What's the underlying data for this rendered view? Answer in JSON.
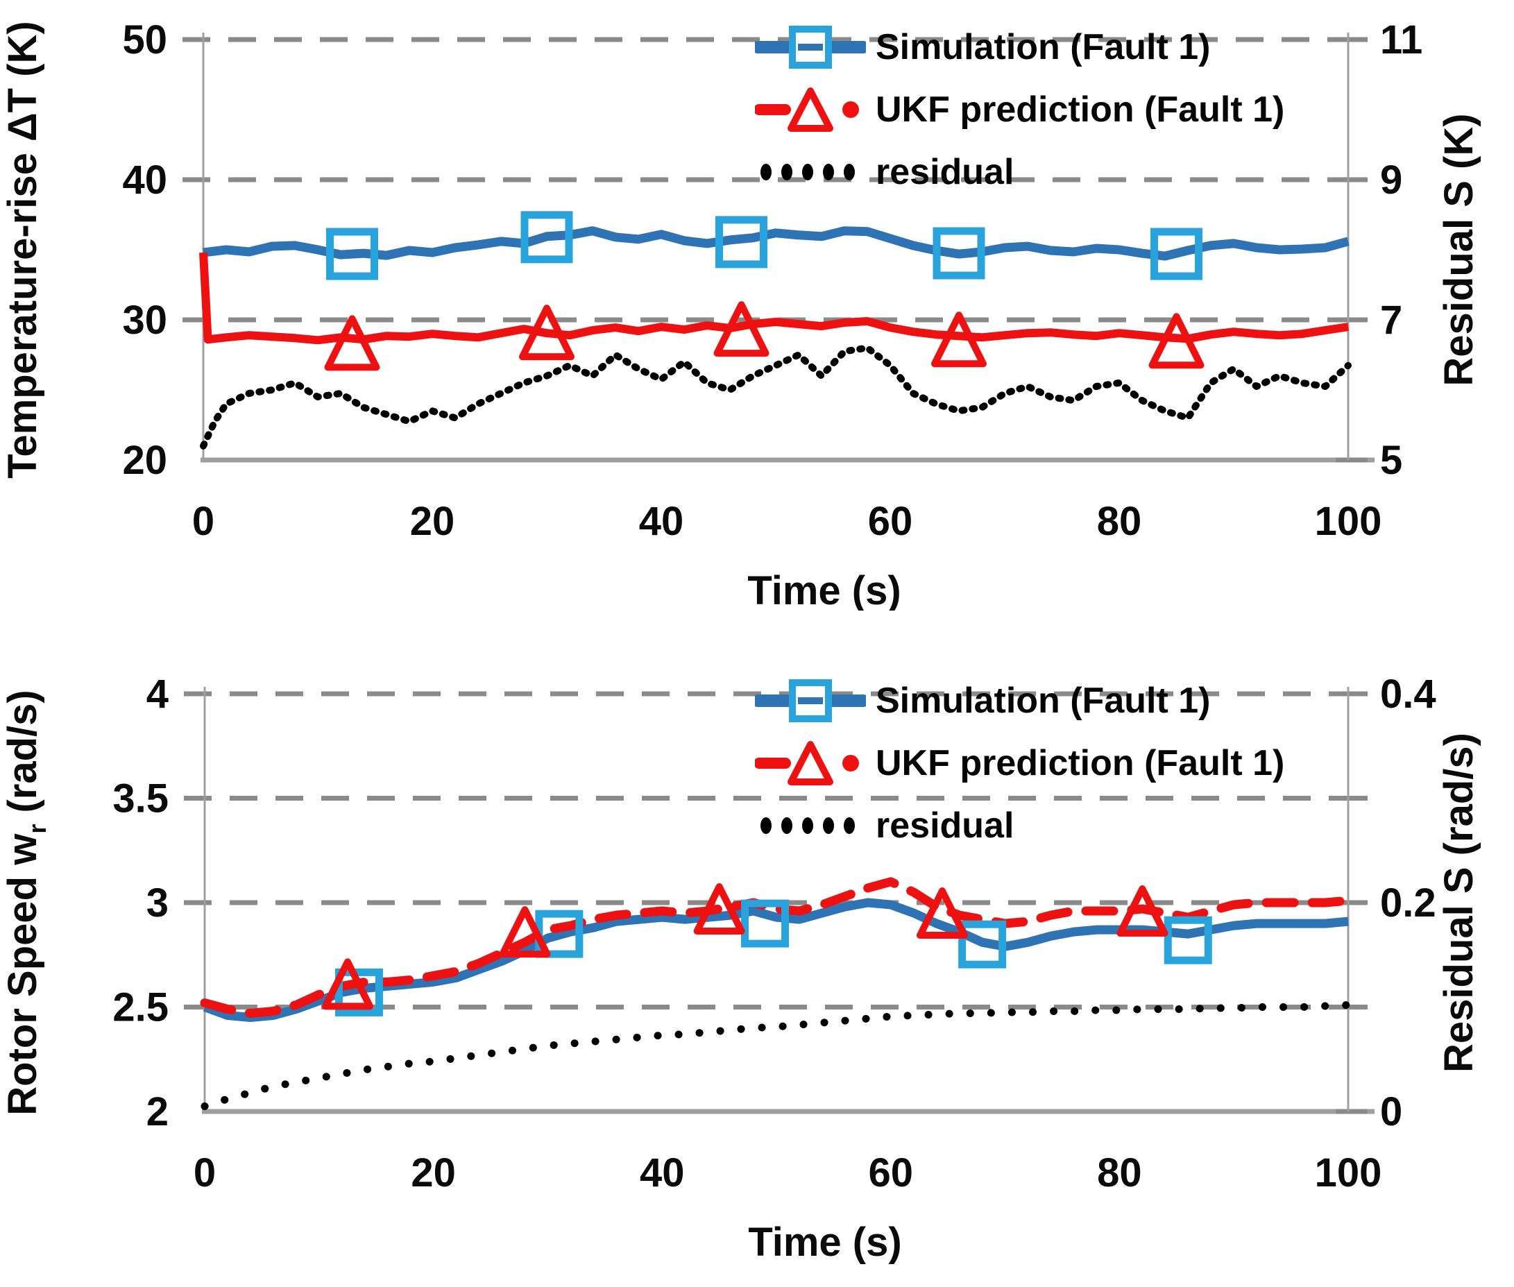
{
  "figure_background": "#ffffff",
  "colors": {
    "simulation_line": "#2E74B5",
    "simulation_marker": "#29A3DC",
    "ukf_line": "#EE1111",
    "residual_line": "#000000",
    "gridline": "#8a8a8a",
    "axis": "#9f9f9f",
    "text": "#0a0a0a"
  },
  "chart_data": [
    {
      "id": "chart-temperature",
      "type": "line",
      "title": "",
      "x_axis": {
        "title": "Time (s)",
        "min": 0,
        "max": 100,
        "ticks": [
          0,
          20,
          40,
          60,
          80,
          100
        ]
      },
      "left_axis": {
        "title_parts": [
          "Temperature-rise ΔT (K)",
          "",
          ""
        ],
        "min": 20,
        "max": 50,
        "ticks": [
          {
            "v": 50,
            "label": "50"
          },
          {
            "v": 40,
            "label": "40"
          },
          {
            "v": 30,
            "label": "30"
          },
          {
            "v": 20,
            "label": "20"
          }
        ]
      },
      "right_axis": {
        "title_parts": [
          "Residual S (K)",
          "",
          ""
        ],
        "min": 5,
        "max": 11,
        "ticks": [
          {
            "v": 11,
            "label": "11"
          },
          {
            "v": 9,
            "label": "9"
          },
          {
            "v": 7,
            "label": "7"
          },
          {
            "v": 5,
            "label": "5"
          }
        ]
      },
      "grid": "dashed-horizontal",
      "legend_position": "top-inside",
      "legend": [
        {
          "type": "sim",
          "label": "Simulation (Fault 1)"
        },
        {
          "type": "ukf",
          "label": "UKF prediction (Fault 1)"
        },
        {
          "type": "res",
          "label": "residual"
        }
      ],
      "marker_size": 64,
      "series": [
        {
          "key": "simulation",
          "name": "Simulation (Fault 1)",
          "axis": "left",
          "style": "blue-solid",
          "x": [
            0,
            2,
            4,
            6,
            8,
            10,
            12,
            14,
            16,
            18,
            20,
            22,
            24,
            26,
            28,
            30,
            32,
            34,
            36,
            38,
            40,
            42,
            44,
            46,
            48,
            50,
            52,
            54,
            56,
            58,
            60,
            62,
            64,
            66,
            68,
            70,
            72,
            74,
            76,
            78,
            80,
            82,
            84,
            86,
            88,
            90,
            92,
            94,
            96,
            98,
            100
          ],
          "y": [
            34.8,
            35.0,
            34.85,
            35.25,
            35.3,
            35.0,
            34.65,
            34.75,
            34.6,
            34.95,
            34.8,
            35.15,
            35.35,
            35.6,
            35.45,
            35.95,
            36.05,
            36.35,
            35.9,
            35.75,
            36.1,
            35.65,
            35.45,
            35.7,
            35.85,
            36.2,
            36.05,
            35.95,
            36.35,
            36.3,
            35.8,
            35.3,
            34.95,
            34.7,
            34.85,
            35.15,
            35.25,
            34.95,
            34.85,
            35.1,
            35.0,
            34.75,
            34.55,
            34.95,
            35.3,
            35.45,
            35.15,
            35.0,
            35.05,
            35.15,
            35.6
          ]
        },
        {
          "key": "ukf",
          "name": "UKF prediction (Fault 1)",
          "axis": "left",
          "style": "red-solid",
          "x": [
            0,
            0.4,
            2,
            4,
            6,
            8,
            10,
            12,
            14,
            16,
            18,
            20,
            22,
            24,
            26,
            28,
            30,
            32,
            34,
            36,
            38,
            40,
            42,
            44,
            46,
            48,
            50,
            52,
            54,
            56,
            58,
            60,
            62,
            64,
            66,
            68,
            70,
            72,
            74,
            76,
            78,
            80,
            82,
            84,
            86,
            88,
            90,
            92,
            94,
            96,
            98,
            100
          ],
          "y": [
            34.8,
            28.6,
            28.75,
            28.9,
            28.8,
            28.7,
            28.55,
            28.75,
            28.6,
            28.85,
            28.8,
            29.0,
            28.85,
            28.75,
            29.05,
            29.35,
            29.05,
            28.9,
            29.25,
            29.45,
            29.2,
            29.5,
            29.3,
            29.6,
            29.4,
            29.7,
            29.85,
            29.7,
            29.55,
            29.8,
            29.9,
            29.45,
            29.15,
            28.95,
            28.85,
            28.75,
            28.9,
            29.05,
            29.1,
            28.95,
            28.85,
            29.05,
            28.9,
            28.75,
            28.65,
            28.95,
            29.15,
            29.0,
            28.9,
            29.0,
            29.25,
            29.5
          ]
        },
        {
          "key": "residual",
          "name": "residual",
          "axis": "right",
          "style": "black-dense",
          "x": [
            0,
            1,
            2,
            4,
            6,
            8,
            10,
            12,
            14,
            16,
            18,
            20,
            22,
            24,
            26,
            28,
            30,
            32,
            34,
            36,
            38,
            40,
            42,
            44,
            46,
            48,
            50,
            52,
            54,
            56,
            58,
            60,
            62,
            64,
            66,
            68,
            70,
            72,
            74,
            76,
            78,
            80,
            82,
            84,
            86,
            88,
            90,
            92,
            94,
            96,
            98,
            100
          ],
          "y": [
            5.2,
            5.55,
            5.8,
            5.95,
            6.0,
            6.1,
            5.9,
            5.95,
            5.75,
            5.65,
            5.55,
            5.7,
            5.6,
            5.8,
            5.95,
            6.1,
            6.2,
            6.35,
            6.2,
            6.5,
            6.3,
            6.15,
            6.4,
            6.1,
            6.0,
            6.2,
            6.35,
            6.5,
            6.2,
            6.55,
            6.6,
            6.35,
            5.95,
            5.8,
            5.7,
            5.75,
            5.95,
            6.05,
            5.9,
            5.85,
            6.05,
            6.1,
            5.85,
            5.7,
            5.6,
            6.1,
            6.3,
            6.05,
            6.2,
            6.1,
            6.05,
            6.35
          ]
        }
      ],
      "markers": {
        "squares": [
          [
            13,
            34.7
          ],
          [
            30,
            35.9
          ],
          [
            47,
            35.55
          ],
          [
            66,
            34.75
          ],
          [
            85,
            34.7
          ]
        ],
        "triangles": [
          [
            13,
            28.35
          ],
          [
            30,
            29.1
          ],
          [
            47,
            29.35
          ],
          [
            66,
            28.6
          ],
          [
            85,
            28.5
          ]
        ]
      }
    },
    {
      "id": "chart-rotor",
      "type": "line",
      "title": "",
      "x_axis": {
        "title": "Time (s)",
        "min": 0,
        "max": 100,
        "ticks": [
          0,
          20,
          40,
          60,
          80,
          100
        ]
      },
      "left_axis": {
        "title_parts": [
          "Rotor Speed w",
          "r",
          " (rad/s)"
        ],
        "min": 2,
        "max": 4,
        "ticks": [
          {
            "v": 4,
            "label": "4"
          },
          {
            "v": 3.5,
            "label": "3.5"
          },
          {
            "v": 3,
            "label": "3"
          },
          {
            "v": 2.5,
            "label": "2.5"
          },
          {
            "v": 2,
            "label": "2"
          }
        ]
      },
      "right_axis": {
        "title_parts": [
          "Residual S (rad/s)",
          "",
          ""
        ],
        "min": 0,
        "max": 0.4,
        "ticks": [
          {
            "v": 0.4,
            "label": "0.4"
          },
          {
            "v": 0.3,
            "label": ""
          },
          {
            "v": 0.2,
            "label": "0.2"
          },
          {
            "v": 0.1,
            "label": ""
          },
          {
            "v": 0,
            "label": "0"
          }
        ]
      },
      "grid": "dashed-horizontal",
      "legend_position": "top-inside",
      "legend": [
        {
          "type": "sim",
          "label": "Simulation (Fault 1)"
        },
        {
          "type": "ukf",
          "label": "UKF prediction (Fault 1)"
        },
        {
          "type": "res",
          "label": "residual"
        }
      ],
      "marker_size": 58,
      "series": [
        {
          "key": "simulation",
          "name": "Simulation (Fault 1)",
          "axis": "left",
          "style": "blue-solid",
          "x": [
            0,
            2,
            4,
            6,
            8,
            10,
            12,
            14,
            16,
            18,
            20,
            22,
            24,
            26,
            28,
            30,
            32,
            34,
            36,
            38,
            40,
            42,
            44,
            46,
            48,
            50,
            52,
            54,
            56,
            58,
            60,
            62,
            64,
            66,
            68,
            70,
            72,
            74,
            76,
            78,
            80,
            82,
            84,
            86,
            88,
            90,
            92,
            94,
            96,
            98,
            100
          ],
          "y": [
            2.5,
            2.46,
            2.45,
            2.46,
            2.49,
            2.53,
            2.57,
            2.59,
            2.6,
            2.61,
            2.62,
            2.64,
            2.68,
            2.72,
            2.77,
            2.83,
            2.86,
            2.88,
            2.91,
            2.92,
            2.93,
            2.92,
            2.93,
            2.94,
            2.96,
            2.93,
            2.92,
            2.95,
            2.98,
            3.0,
            2.99,
            2.95,
            2.9,
            2.86,
            2.81,
            2.79,
            2.81,
            2.84,
            2.86,
            2.87,
            2.87,
            2.87,
            2.86,
            2.85,
            2.87,
            2.89,
            2.9,
            2.9,
            2.9,
            2.9,
            2.91
          ]
        },
        {
          "key": "ukf",
          "name": "UKF prediction (Fault 1)",
          "axis": "left",
          "style": "red-dash",
          "x": [
            0,
            2,
            4,
            6,
            8,
            10,
            12,
            14,
            16,
            18,
            20,
            22,
            24,
            26,
            28,
            30,
            32,
            34,
            36,
            38,
            40,
            42,
            44,
            46,
            48,
            50,
            52,
            54,
            56,
            58,
            60,
            62,
            64,
            66,
            68,
            70,
            72,
            74,
            76,
            78,
            80,
            82,
            84,
            86,
            88,
            90,
            92,
            94,
            96,
            98,
            100
          ],
          "y": [
            2.52,
            2.49,
            2.47,
            2.48,
            2.51,
            2.56,
            2.6,
            2.62,
            2.62,
            2.63,
            2.65,
            2.67,
            2.71,
            2.76,
            2.81,
            2.87,
            2.89,
            2.92,
            2.94,
            2.95,
            2.96,
            2.95,
            2.96,
            2.98,
            3.0,
            2.97,
            2.96,
            2.99,
            3.03,
            3.07,
            3.1,
            3.05,
            2.98,
            2.94,
            2.92,
            2.9,
            2.91,
            2.94,
            2.96,
            2.96,
            2.96,
            2.97,
            2.95,
            2.93,
            2.96,
            2.99,
            3.0,
            3.0,
            3.0,
            3.0,
            3.01
          ]
        },
        {
          "key": "residual",
          "name": "residual",
          "axis": "right",
          "style": "black-dots",
          "x": [
            0,
            2,
            4,
            6,
            8,
            10,
            12,
            14,
            16,
            18,
            20,
            22,
            24,
            26,
            28,
            30,
            32,
            34,
            36,
            38,
            40,
            42,
            44,
            46,
            48,
            50,
            52,
            54,
            56,
            58,
            60,
            62,
            64,
            66,
            68,
            70,
            72,
            74,
            76,
            78,
            80,
            82,
            84,
            86,
            88,
            90,
            92,
            94,
            96,
            98,
            100
          ],
          "y": [
            0.005,
            0.012,
            0.018,
            0.024,
            0.028,
            0.032,
            0.036,
            0.04,
            0.043,
            0.046,
            0.048,
            0.051,
            0.054,
            0.057,
            0.06,
            0.063,
            0.065,
            0.067,
            0.069,
            0.071,
            0.073,
            0.074,
            0.076,
            0.078,
            0.08,
            0.081,
            0.083,
            0.085,
            0.087,
            0.089,
            0.091,
            0.092,
            0.093,
            0.094,
            0.094,
            0.095,
            0.095,
            0.096,
            0.096,
            0.097,
            0.097,
            0.098,
            0.098,
            0.098,
            0.099,
            0.099,
            0.1,
            0.1,
            0.1,
            0.101,
            0.102
          ]
        }
      ],
      "markers": {
        "squares": [
          [
            13.5,
            2.57
          ],
          [
            31,
            2.85
          ],
          [
            49,
            2.9
          ],
          [
            68,
            2.8
          ],
          [
            86,
            2.82
          ]
        ],
        "triangles": [
          [
            12.5,
            2.61
          ],
          [
            28,
            2.86
          ],
          [
            45,
            2.97
          ],
          [
            64.5,
            2.95
          ],
          [
            82,
            2.96
          ]
        ]
      }
    }
  ]
}
